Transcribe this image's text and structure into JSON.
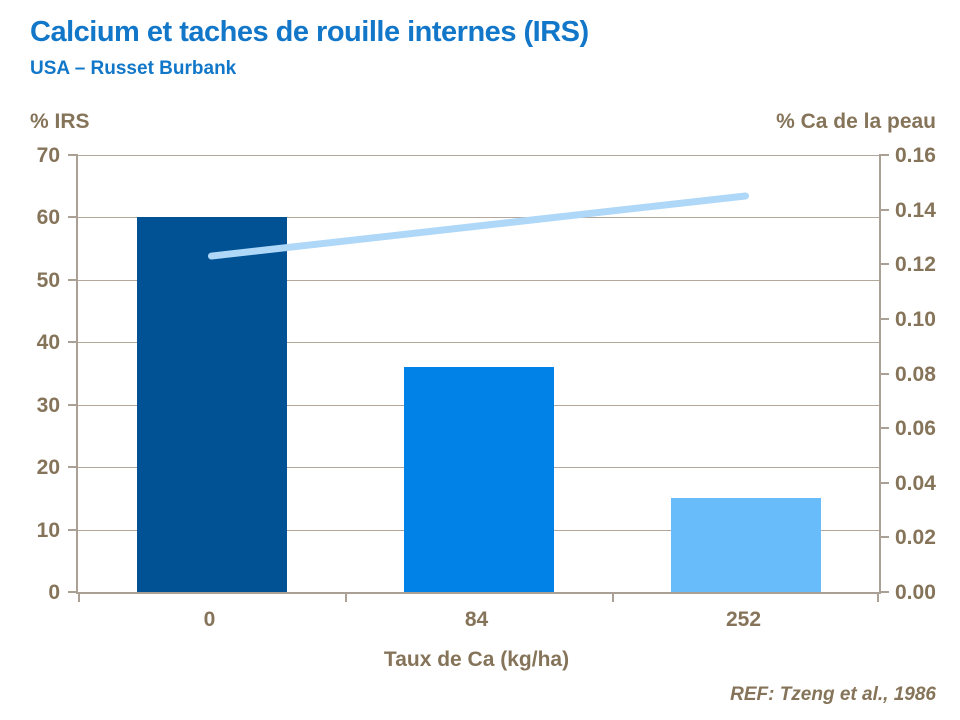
{
  "header": {
    "title": "Calcium et taches de rouille internes (IRS)",
    "subtitle": "USA – Russet Burbank"
  },
  "footer": {
    "reference": "REF: Tzeng et al., 1986"
  },
  "colors": {
    "title_blue": "#1277C8",
    "label_brown": "#857459",
    "grid_tan": "#B2A79A",
    "axis_tan": "#ABA096",
    "bar_colors": [
      "#005295",
      "#0082E6",
      "#69BCFA"
    ],
    "line_blue": "#AFD8F8"
  },
  "chart_data": {
    "type": "bar",
    "title": "Calcium et taches de rouille internes (IRS)",
    "subtitle": "USA – Russet Burbank",
    "categories": [
      "0",
      "84",
      "252"
    ],
    "series": [
      {
        "name": "% IRS",
        "type": "bar",
        "axis": "left",
        "values": [
          60,
          36,
          15
        ],
        "colors": [
          "#005295",
          "#0082E6",
          "#69BCFA"
        ]
      },
      {
        "name": "% Ca de la peau",
        "type": "line",
        "axis": "right",
        "values": [
          0.123,
          0.134,
          0.145
        ],
        "color": "#AFD8F8"
      }
    ],
    "xlabel": "Taux de Ca (kg/ha)",
    "left_axis": {
      "unit": "% IRS",
      "min": 0,
      "max": 70,
      "tick_labels": [
        "0",
        "10",
        "20",
        "30",
        "40",
        "50",
        "60",
        "70"
      ]
    },
    "right_axis": {
      "unit": "% Ca de la peau",
      "min": 0,
      "max": 0.16,
      "tick_labels": [
        "0.00",
        "0.02",
        "0.04",
        "0.06",
        "0.08",
        "0.10",
        "0.12",
        "0.14",
        "0.16"
      ]
    },
    "grid": "horizontal gridlines at left-axis intervals",
    "legend_position": "none"
  }
}
